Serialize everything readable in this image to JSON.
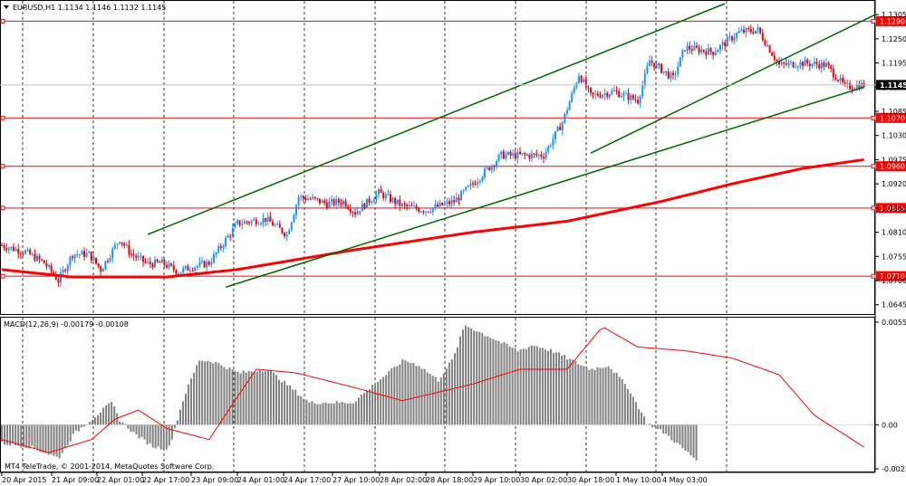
{
  "symbol_header": "EURUSD,H1  1.1134 1.1146 1.1132 1.1145",
  "macd_header": "MACD(12,26,9) -0.00179 -0.00108",
  "copyright": "MT4 TeleTrade, © 2001-2014, MetaQuotes Software Corp.",
  "colors": {
    "bull": "#1e90ff",
    "bear": "#e8000b",
    "level": "#ff0000",
    "channel": "#006400",
    "ma": "#ff0000",
    "macd_hist": "#808080",
    "macd_signal": "#ff0000",
    "current_price_bg": "#000000"
  },
  "icons": {
    "header_dropdown": "triangle-down-icon"
  },
  "current_price_label": "1.1145",
  "price_axis": {
    "labels": [
      "1.1305",
      "1.1250",
      "1.1195",
      "1.1140",
      "1.1085",
      "1.1030",
      "1.0975",
      "1.0920",
      "1.0865",
      "1.0810",
      "1.0755",
      "1.0700",
      "1.0645"
    ]
  },
  "price_levels": [
    {
      "label": "1.1290",
      "price": 1.129
    },
    {
      "label": "1.1070",
      "price": 1.107
    },
    {
      "label": "1.0960",
      "price": 1.096
    },
    {
      "label": "1.0865",
      "price": 1.0865
    },
    {
      "label": "1.0710",
      "price": 1.071
    }
  ],
  "macd_axis": {
    "labels": [
      "0.00554",
      "0.00",
      "-0.00238"
    ]
  },
  "time_axis": {
    "labels": [
      "20 Apr 2015",
      "21 Apr 09:00",
      "22 Apr 01:00",
      "22 Apr 17:00",
      "23 Apr 09:00",
      "24 Apr 01:00",
      "24 Apr 17:00",
      "27 Apr 10:00",
      "28 Apr 02:00",
      "28 Apr 18:00",
      "29 Apr 10:00",
      "30 Apr 02:00",
      "30 Apr 18:00",
      "1 May 10:00",
      "4 May 03:00"
    ]
  },
  "chart_data": {
    "type": "candlestick",
    "symbol": "EURUSD",
    "timeframe": "H1",
    "price_range": [
      1.063,
      1.133
    ],
    "close_anchors": [
      [
        0,
        1.078
      ],
      [
        10,
        1.0765
      ],
      [
        18,
        1.074
      ],
      [
        24,
        1.07
      ],
      [
        30,
        1.076
      ],
      [
        37,
        1.076
      ],
      [
        42,
        1.0725
      ],
      [
        50,
        1.0795
      ],
      [
        55,
        1.076
      ],
      [
        62,
        1.0738
      ],
      [
        68,
        1.074
      ],
      [
        75,
        1.072
      ],
      [
        80,
        1.073
      ],
      [
        88,
        1.074
      ],
      [
        100,
        1.083
      ],
      [
        112,
        1.084
      ],
      [
        121,
        1.0805
      ],
      [
        126,
        1.089
      ],
      [
        132,
        1.0885
      ],
      [
        138,
        1.0875
      ],
      [
        145,
        1.088
      ],
      [
        150,
        1.0855
      ],
      [
        160,
        1.09
      ],
      [
        170,
        1.087
      ],
      [
        180,
        1.086
      ],
      [
        192,
        1.088
      ],
      [
        200,
        1.092
      ],
      [
        212,
        1.0985
      ],
      [
        220,
        1.0985
      ],
      [
        230,
        1.0985
      ],
      [
        238,
        1.106
      ],
      [
        245,
        1.117
      ],
      [
        250,
        1.112
      ],
      [
        260,
        1.113
      ],
      [
        270,
        1.111
      ],
      [
        275,
        1.12
      ],
      [
        285,
        1.116
      ],
      [
        290,
        1.123
      ],
      [
        302,
        1.122
      ],
      [
        313,
        1.1265
      ],
      [
        321,
        1.127
      ],
      [
        330,
        1.119
      ],
      [
        340,
        1.1195
      ],
      [
        350,
        1.119
      ],
      [
        358,
        1.114
      ],
      [
        365,
        1.1145
      ]
    ],
    "moving_average": [
      [
        0,
        1.0725
      ],
      [
        30,
        1.0708
      ],
      [
        70,
        1.0708
      ],
      [
        100,
        1.0725
      ],
      [
        150,
        1.077
      ],
      [
        200,
        1.081
      ],
      [
        240,
        1.0835
      ],
      [
        280,
        1.088
      ],
      [
        310,
        1.092
      ],
      [
        340,
        1.0955
      ],
      [
        366,
        1.0975
      ]
    ],
    "channel_lines": [
      {
        "from": [
          62,
          1.0805
        ],
        "to": [
          307,
          1.133
        ]
      },
      {
        "from": [
          95,
          1.0685
        ],
        "to": [
          366,
          1.114
        ]
      },
      {
        "from": [
          250,
          1.099
        ],
        "to": [
          440,
          1.1305
        ]
      }
    ],
    "macd": {
      "ylim": [
        -0.00238,
        0.00554
      ],
      "hist_anchors": [
        [
          0,
          -0.001
        ],
        [
          15,
          -0.0012
        ],
        [
          30,
          -0.0018
        ],
        [
          38,
          -0.0005
        ],
        [
          45,
          0.0001
        ],
        [
          52,
          0.0007
        ],
        [
          58,
          0.0012
        ],
        [
          62,
          0.0003
        ],
        [
          70,
          -0.0005
        ],
        [
          80,
          -0.0012
        ],
        [
          88,
          -0.0013
        ],
        [
          96,
          0.0015
        ],
        [
          104,
          0.0035
        ],
        [
          112,
          0.0034
        ],
        [
          125,
          0.0028
        ],
        [
          140,
          0.003
        ],
        [
          150,
          0.0022
        ],
        [
          162,
          0.0012
        ],
        [
          175,
          0.0012
        ],
        [
          185,
          0.0012
        ],
        [
          200,
          0.0025
        ],
        [
          212,
          0.0035
        ],
        [
          220,
          0.0032
        ],
        [
          230,
          0.0024
        ],
        [
          238,
          0.0036
        ],
        [
          244,
          0.0054
        ],
        [
          252,
          0.005
        ],
        [
          262,
          0.0045
        ],
        [
          272,
          0.004
        ],
        [
          280,
          0.0043
        ],
        [
          290,
          0.004
        ],
        [
          300,
          0.0035
        ],
        [
          310,
          0.003
        ],
        [
          320,
          0.0032
        ],
        [
          330,
          0.002
        ],
        [
          340,
          0.0001
        ],
        [
          350,
          -0.0005
        ],
        [
          358,
          -0.0012
        ],
        [
          366,
          -0.0019
        ]
      ],
      "signal_anchors": [
        [
          0,
          -0.0008
        ],
        [
          20,
          -0.0015
        ],
        [
          38,
          -0.0008
        ],
        [
          48,
          0.0003
        ],
        [
          58,
          0.0008
        ],
        [
          70,
          -0.0002
        ],
        [
          88,
          -0.0008
        ],
        [
          100,
          0.0015
        ],
        [
          108,
          0.003
        ],
        [
          125,
          0.0028
        ],
        [
          150,
          0.002
        ],
        [
          170,
          0.0013
        ],
        [
          200,
          0.0022
        ],
        [
          220,
          0.003
        ],
        [
          240,
          0.003
        ],
        [
          255,
          0.0053
        ],
        [
          270,
          0.0042
        ],
        [
          290,
          0.004
        ],
        [
          310,
          0.0036
        ],
        [
          330,
          0.0027
        ],
        [
          345,
          0.0005
        ],
        [
          366,
          -0.0012
        ]
      ]
    }
  }
}
